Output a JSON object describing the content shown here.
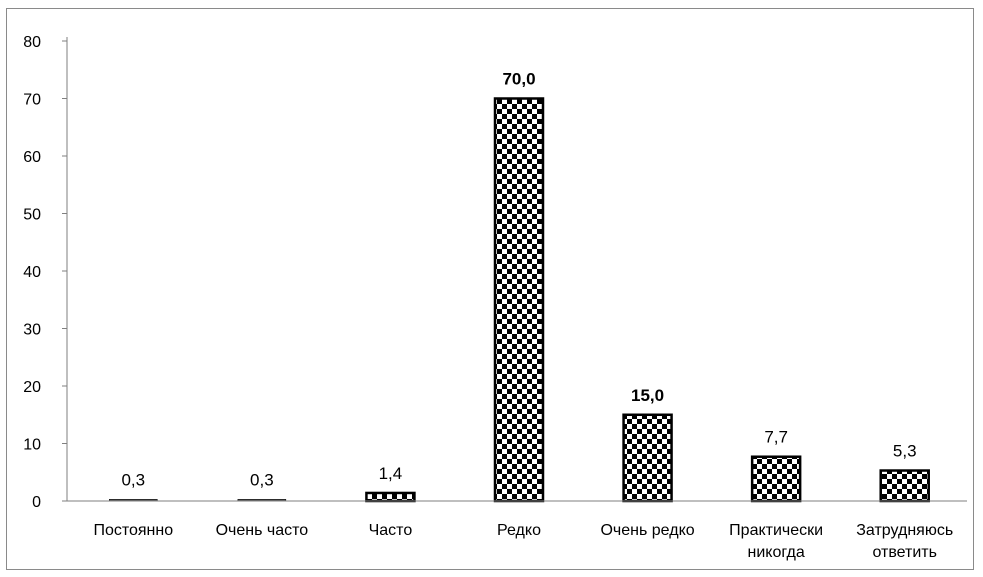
{
  "chart_data": {
    "type": "bar",
    "categories": [
      [
        "Постоянно"
      ],
      [
        "Очень часто"
      ],
      [
        "Часто"
      ],
      [
        "Редко"
      ],
      [
        "Очень редко"
      ],
      [
        "Практически",
        "никогда"
      ],
      [
        "Затрудняюсь",
        "ответить"
      ]
    ],
    "values": [
      0.3,
      0.3,
      1.4,
      70.0,
      15.0,
      7.7,
      5.3
    ],
    "data_labels": [
      "0,3",
      "0,3",
      "1,4",
      "70,0",
      "15,0",
      "7,7",
      "5,3"
    ],
    "bold_labels": [
      false,
      false,
      false,
      true,
      true,
      false,
      false
    ],
    "yticks": [
      0,
      10,
      20,
      30,
      40,
      50,
      60,
      70,
      80
    ],
    "ylim": [
      0,
      80
    ],
    "grid": false,
    "legend": "none",
    "bar_pattern": "checkerboard",
    "colors": {
      "bar_dark": "#000000",
      "bar_light": "#ffffff",
      "frame": "#8a8a8a",
      "axis": "#7f7f7f"
    }
  }
}
